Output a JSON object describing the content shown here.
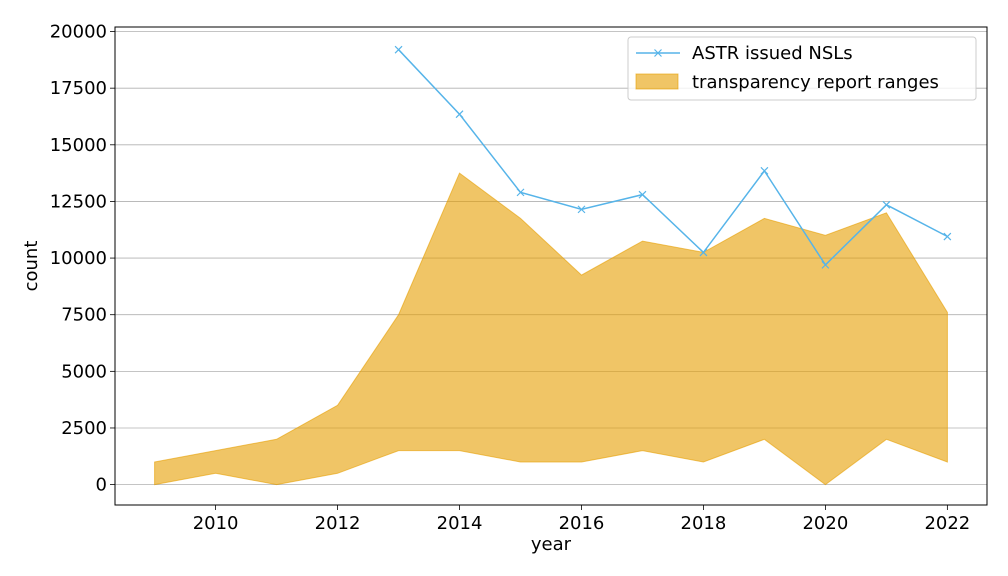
{
  "chart_data": {
    "type": "line",
    "xlabel": "year",
    "ylabel": "count",
    "xlim": [
      2008.35,
      2022.65
    ],
    "ylim": [
      -900,
      20200
    ],
    "xticks": [
      2010,
      2012,
      2014,
      2016,
      2018,
      2020,
      2022
    ],
    "yticks": [
      0,
      2500,
      5000,
      7500,
      10000,
      12500,
      15000,
      17500,
      20000
    ],
    "grid": "horizontal",
    "legend_position": "top-right",
    "colors": {
      "line": "#56b4e9",
      "band": "#e69f00"
    },
    "series": [
      {
        "name": "ASTR issued NSLs",
        "type": "line",
        "marker": "x",
        "x": [
          2013,
          2014,
          2015,
          2016,
          2017,
          2018,
          2019,
          2020,
          2021,
          2022
        ],
        "y": [
          19200,
          16350,
          12900,
          12150,
          12800,
          10250,
          13850,
          9700,
          12350,
          10950
        ]
      },
      {
        "name": "transparency report ranges",
        "type": "range",
        "x": [
          2009,
          2010,
          2011,
          2012,
          2013,
          2014,
          2015,
          2016,
          2017,
          2018,
          2019,
          2020,
          2021,
          2022
        ],
        "low": [
          0,
          500,
          0,
          500,
          1500,
          1500,
          1000,
          1000,
          1500,
          1000,
          2000,
          0,
          2000,
          1000
        ],
        "high": [
          1000,
          1500,
          2000,
          3500,
          7500,
          13750,
          11750,
          9250,
          10750,
          10250,
          11750,
          11000,
          12000,
          7600
        ]
      }
    ]
  }
}
